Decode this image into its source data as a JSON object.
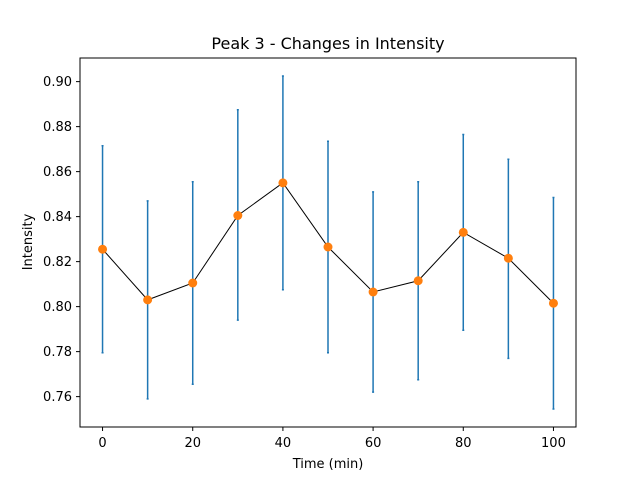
{
  "chart_data": {
    "type": "line",
    "title": "Peak 3 - Changes in Intensity",
    "xlabel": "Time (min)",
    "ylabel": "Intensity",
    "xlim": [
      -5,
      105
    ],
    "ylim": [
      0.7465,
      0.9105
    ],
    "xticks": [
      0,
      20,
      40,
      60,
      80,
      100
    ],
    "yticks": [
      0.76,
      0.78,
      0.8,
      0.82,
      0.84,
      0.86,
      0.88,
      0.9
    ],
    "ytick_labels": [
      "0.76",
      "0.78",
      "0.80",
      "0.82",
      "0.84",
      "0.86",
      "0.88",
      "0.90"
    ],
    "grid": false,
    "colors": {
      "line": "#000000",
      "marker": "#ff7f0e",
      "errorbar": "#1f77b4"
    },
    "series": [
      {
        "x": [
          0,
          10,
          20,
          30,
          40,
          50,
          60,
          70,
          80,
          90,
          100
        ],
        "values": [
          0.8255,
          0.803,
          0.8105,
          0.8405,
          0.855,
          0.8265,
          0.8065,
          0.8115,
          0.833,
          0.8215,
          0.8015
        ],
        "error_lower": [
          0.7795,
          0.759,
          0.7655,
          0.794,
          0.8075,
          0.7795,
          0.762,
          0.7675,
          0.7895,
          0.777,
          0.7545
        ],
        "error_upper": [
          0.8715,
          0.847,
          0.8555,
          0.8875,
          0.9025,
          0.8735,
          0.851,
          0.8555,
          0.8765,
          0.8655,
          0.8485
        ]
      }
    ]
  }
}
